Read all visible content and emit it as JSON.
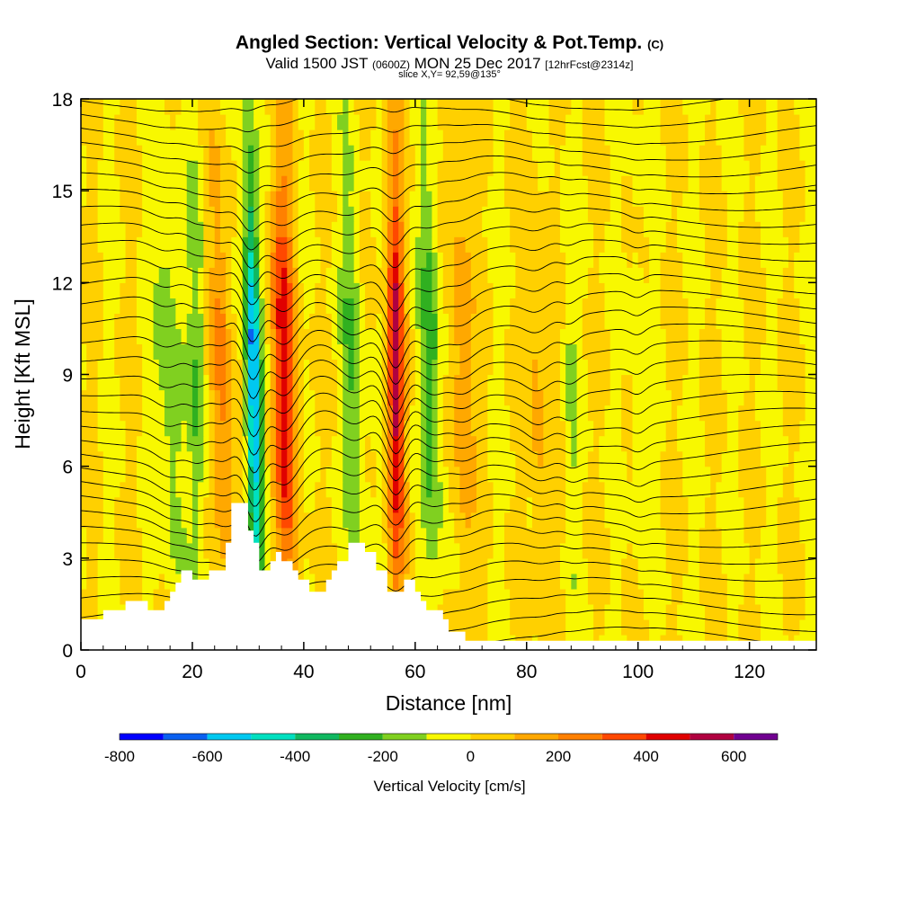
{
  "header": {
    "title_main": "Angled Section: Vertical Velocity & Pot.Temp.",
    "title_unit": "(C)",
    "subtitle_a": "Valid 1500 JST",
    "subtitle_b": "(0600Z)",
    "subtitle_c": "MON 25 Dec 2017",
    "subtitle_d": "[12hrFcst@2314z]",
    "slice": "slice X,Y= 92,59@135°"
  },
  "chart_data": {
    "type": "heatmap",
    "title": "Angled Section: Vertical Velocity & Pot.Temp. (C)",
    "xlabel": "Distance [nm]",
    "ylabel": "Height [Kft MSL]",
    "xlim": [
      0,
      132
    ],
    "ylim": [
      0,
      18
    ],
    "xticks": [
      0,
      20,
      40,
      60,
      80,
      100,
      120
    ],
    "yticks": [
      0,
      3,
      6,
      9,
      12,
      15,
      18
    ],
    "colorbar": {
      "title": "Vertical Velocity [cm/s]",
      "levels": [
        -800,
        -700,
        -600,
        -500,
        -400,
        -300,
        -200,
        -100,
        0,
        100,
        200,
        300,
        400,
        500,
        600,
        700
      ],
      "tick_labels": [
        "-800",
        "-600",
        "-400",
        "-200",
        "0",
        "200",
        "400",
        "600"
      ],
      "tick_values": [
        -800,
        -600,
        -400,
        -200,
        0,
        200,
        400,
        600
      ],
      "colors": [
        "#0000ff",
        "#0a60f0",
        "#00c8f0",
        "#00e0c0",
        "#10b860",
        "#30b020",
        "#80d020",
        "#f8f800",
        "#ffd000",
        "#ffa800",
        "#ff8000",
        "#ff4800",
        "#e00000",
        "#b00040",
        "#700090"
      ]
    },
    "bands": [
      {
        "x": 16,
        "w": 2.2,
        "lean": 0.15,
        "v": -200
      },
      {
        "x": 21,
        "w": 1.5,
        "lean": 0.05,
        "v": -200
      },
      {
        "x": 25.5,
        "w": 1.8,
        "lean": 0.12,
        "v": 250
      },
      {
        "x": 31,
        "w": 1.4,
        "lean": 0.1,
        "v": -650
      },
      {
        "x": 36.5,
        "w": 2.2,
        "lean": 0.08,
        "v": 450
      },
      {
        "x": 49,
        "w": 2.0,
        "lean": 0.15,
        "v": -200
      },
      {
        "x": 56.5,
        "w": 1.5,
        "lean": 0.03,
        "v": 550
      },
      {
        "x": 63,
        "w": 2.0,
        "lean": 0.1,
        "v": -250
      },
      {
        "x": 68.5,
        "w": 2.0,
        "lean": 0.08,
        "v": 200
      },
      {
        "x": 82,
        "w": 1.8,
        "lean": 0.1,
        "v": 150
      },
      {
        "x": 88,
        "w": 1.2,
        "lean": 0.1,
        "v": -100
      },
      {
        "x": 100,
        "w": 1.2,
        "lean": 0.05,
        "v": -100
      }
    ],
    "terrain": [
      [
        0,
        1
      ],
      [
        4,
        1
      ],
      [
        4,
        1.3
      ],
      [
        8,
        1.3
      ],
      [
        8,
        1.6
      ],
      [
        12,
        1.6
      ],
      [
        12,
        1.3
      ],
      [
        15,
        1.3
      ],
      [
        15,
        1.6
      ],
      [
        16,
        1.6
      ],
      [
        16,
        1.9
      ],
      [
        17,
        1.9
      ],
      [
        17,
        2.2
      ],
      [
        18,
        2.2
      ],
      [
        18,
        2.6
      ],
      [
        20,
        2.6
      ],
      [
        20,
        2.3
      ],
      [
        23,
        2.3
      ],
      [
        23,
        2.6
      ],
      [
        26,
        2.6
      ],
      [
        26,
        3.5
      ],
      [
        27,
        3.5
      ],
      [
        27,
        4.8
      ],
      [
        30,
        4.8
      ],
      [
        30,
        3.9
      ],
      [
        31,
        3.9
      ],
      [
        31,
        3.5
      ],
      [
        32,
        3.5
      ],
      [
        32,
        2.6
      ],
      [
        34,
        2.6
      ],
      [
        34,
        2.9
      ],
      [
        35,
        2.9
      ],
      [
        35,
        3.2
      ],
      [
        36,
        3.2
      ],
      [
        36,
        2.9
      ],
      [
        38,
        2.9
      ],
      [
        38,
        2.6
      ],
      [
        39,
        2.6
      ],
      [
        39,
        2.3
      ],
      [
        41,
        2.3
      ],
      [
        41,
        1.9
      ],
      [
        44,
        1.9
      ],
      [
        44,
        2.3
      ],
      [
        45,
        2.3
      ],
      [
        45,
        2.6
      ],
      [
        46,
        2.6
      ],
      [
        46,
        2.9
      ],
      [
        48,
        2.9
      ],
      [
        48,
        3.5
      ],
      [
        51,
        3.5
      ],
      [
        51,
        3.2
      ],
      [
        53,
        3.2
      ],
      [
        53,
        2.6
      ],
      [
        55,
        2.6
      ],
      [
        55,
        1.9
      ],
      [
        58,
        1.9
      ],
      [
        58,
        2.3
      ],
      [
        60,
        2.3
      ],
      [
        60,
        1.9
      ],
      [
        61,
        1.9
      ],
      [
        61,
        1.6
      ],
      [
        62,
        1.6
      ],
      [
        62,
        1.3
      ],
      [
        65,
        1.3
      ],
      [
        65,
        1.0
      ],
      [
        66,
        1.0
      ],
      [
        66,
        0.6
      ],
      [
        69,
        0.6
      ],
      [
        69,
        0.3
      ],
      [
        132,
        0.3
      ]
    ]
  }
}
